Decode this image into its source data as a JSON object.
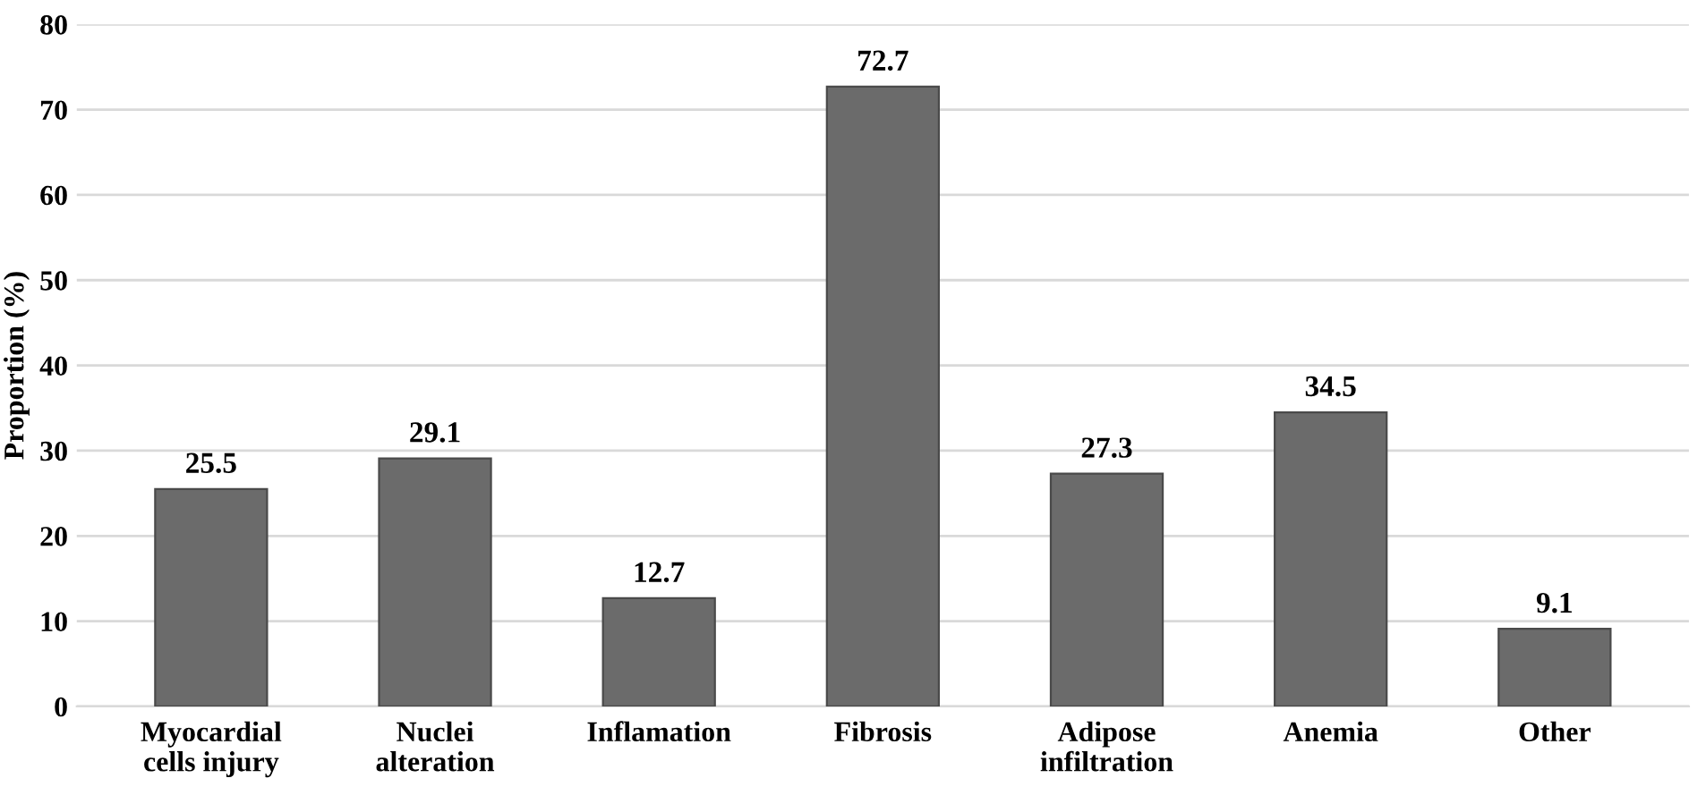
{
  "chart_data": {
    "type": "bar",
    "ylabel": "Proportion (%)",
    "categories": [
      "Myocardial cells injury",
      "Nuclei alteration",
      "Inflamation",
      "Fibrosis",
      "Adipose infiltration",
      "Anemia",
      "Other"
    ],
    "values": [
      25.5,
      29.1,
      12.7,
      72.7,
      27.3,
      34.5,
      9.1
    ],
    "color": "#6b6b6b",
    "ylim": [
      0,
      80
    ],
    "yticks": [
      0,
      10,
      20,
      30,
      40,
      50,
      60,
      70,
      80
    ],
    "grid": "y",
    "data_labels": true
  }
}
